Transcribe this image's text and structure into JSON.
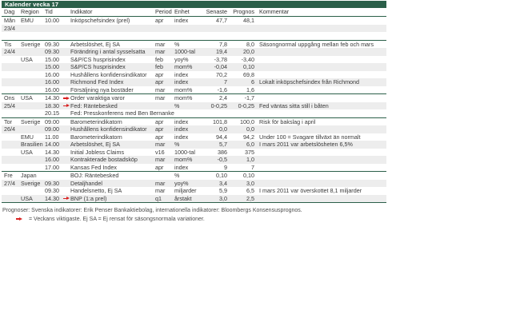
{
  "title": "Kalender vecka 17",
  "columns": {
    "dag": "Dag",
    "region": "Region",
    "tid": "Tid",
    "indikator": "Indikator",
    "period": "Period",
    "enhet": "Enhet",
    "senaste": "Senaste",
    "prognos": "Prognos",
    "kommentar": "Kommentar"
  },
  "day_blocks": [
    {
      "rows": [
        {
          "dag": "Mån",
          "region": "EMU",
          "tid": "10.00",
          "viktig": false,
          "indikator": "Inköpschefsindex (prel)",
          "period": "apr",
          "enhet": "index",
          "senaste": "47,7",
          "prognos": "48,1",
          "kommentar": ""
        },
        {
          "dag": "23/4",
          "region": "",
          "tid": "",
          "viktig": false,
          "indikator": "",
          "period": "",
          "enhet": "",
          "senaste": "",
          "prognos": "",
          "kommentar": ""
        },
        {
          "dag": "",
          "region": "",
          "tid": "",
          "viktig": false,
          "indikator": "",
          "period": "",
          "enhet": "",
          "senaste": "",
          "prognos": "",
          "kommentar": ""
        }
      ]
    },
    {
      "rows": [
        {
          "dag": "Tis",
          "region": "Sverige",
          "tid": "09.30",
          "viktig": false,
          "indikator": "Arbetslöshet, Ej SA",
          "period": "mar",
          "enhet": "%",
          "senaste": "7,8",
          "prognos": "8,0",
          "kommentar": "Säsongnormal uppgång mellan feb och mars"
        },
        {
          "dag": "24/4",
          "region": "",
          "tid": "09.30",
          "viktig": false,
          "indikator": "Förändring i antal sysselsatta",
          "period": "mar",
          "enhet": "1000-tal",
          "senaste": "19,4",
          "prognos": "20,0",
          "kommentar": ""
        },
        {
          "dag": "",
          "region": "USA",
          "tid": "15.00",
          "viktig": false,
          "indikator": "S&P/CS husprisindex",
          "period": "feb",
          "enhet": "yoy%",
          "senaste": "-3,78",
          "prognos": "-3,40",
          "kommentar": ""
        },
        {
          "dag": "",
          "region": "",
          "tid": "15.00",
          "viktig": false,
          "indikator": "S&P/CS husprisindex",
          "period": "feb",
          "enhet": "mom%",
          "senaste": "-0,04",
          "prognos": "0,10",
          "kommentar": ""
        },
        {
          "dag": "",
          "region": "",
          "tid": "16.00",
          "viktig": false,
          "indikator": "Hushållens konfidensindikator",
          "period": "apr",
          "enhet": "index",
          "senaste": "70,2",
          "prognos": "69,8",
          "kommentar": ""
        },
        {
          "dag": "",
          "region": "",
          "tid": "16.00",
          "viktig": false,
          "indikator": "Richmond Fed Index",
          "period": "apr",
          "enhet": "index",
          "senaste": "7",
          "prognos": "6",
          "kommentar": "Lokalt inköpschefsindex från Richmond"
        },
        {
          "dag": "",
          "region": "",
          "tid": "16.00",
          "viktig": false,
          "indikator": "Försäljning nya bostäder",
          "period": "mar",
          "enhet": "mom%",
          "senaste": "-1,6",
          "prognos": "1,6",
          "kommentar": ""
        }
      ]
    },
    {
      "rows": [
        {
          "dag": "Ons",
          "region": "USA",
          "tid": "14.30",
          "viktig": true,
          "indikator": "Order varaktiga varor",
          "period": "mar",
          "enhet": "mom%",
          "senaste": "2,4",
          "prognos": "-1,7",
          "kommentar": ""
        },
        {
          "dag": "25/4",
          "region": "",
          "tid": "18.30",
          "viktig": true,
          "indikator": "Fed: Räntebesked",
          "period": "",
          "enhet": "%",
          "senaste": "0-0,25",
          "prognos": "0-0,25",
          "kommentar": "Fed väntas sitta still i båten"
        },
        {
          "dag": "",
          "region": "",
          "tid": "20.15",
          "viktig": false,
          "indikator": "Fed: Presskonferens med Ben Bernanke",
          "period": "",
          "enhet": "",
          "senaste": "",
          "prognos": "",
          "kommentar": ""
        }
      ]
    },
    {
      "rows": [
        {
          "dag": "Tor",
          "region": "Sverige",
          "tid": "09.00",
          "viktig": false,
          "indikator": "Barometerindikatorn",
          "period": "apr",
          "enhet": "index",
          "senaste": "101,8",
          "prognos": "100,0",
          "kommentar": "Risk för bakslag i april"
        },
        {
          "dag": "26/4",
          "region": "",
          "tid": "09.00",
          "viktig": false,
          "indikator": "Hushållens konfidensindikator",
          "period": "apr",
          "enhet": "index",
          "senaste": "0,0",
          "prognos": "0,0",
          "kommentar": ""
        },
        {
          "dag": "",
          "region": "EMU",
          "tid": "11.00",
          "viktig": false,
          "indikator": "Barometerindikatorn",
          "period": "apr",
          "enhet": "index",
          "senaste": "94,4",
          "prognos": "94,2",
          "kommentar": "Under 100 = Svagare tillväxt än normalt"
        },
        {
          "dag": "",
          "region": "Brasilien",
          "tid": "14.00",
          "viktig": false,
          "indikator": "Arbetslöshet, Ej SA",
          "period": "mar",
          "enhet": "%",
          "senaste": "5,7",
          "prognos": "6,0",
          "kommentar": "I mars 2011 var arbetslösheten 6,5%"
        },
        {
          "dag": "",
          "region": "USA",
          "tid": "14.30",
          "viktig": false,
          "indikator": "Initial Jobless Claims",
          "period": "v16",
          "enhet": "1000-tal",
          "senaste": "386",
          "prognos": "375",
          "kommentar": ""
        },
        {
          "dag": "",
          "region": "",
          "tid": "16.00",
          "viktig": false,
          "indikator": "Kontrakterade bostadsköp",
          "period": "mar",
          "enhet": "mom%",
          "senaste": "-0,5",
          "prognos": "1,0",
          "kommentar": ""
        },
        {
          "dag": "",
          "region": "",
          "tid": "17.00",
          "viktig": false,
          "indikator": "Kansas Fed Index",
          "period": "apr",
          "enhet": "index",
          "senaste": "9",
          "prognos": "7",
          "kommentar": ""
        }
      ]
    },
    {
      "rows": [
        {
          "dag": "Fre",
          "region": "Japan",
          "tid": "",
          "viktig": false,
          "indikator": "BOJ: Räntebesked",
          "period": "",
          "enhet": "%",
          "senaste": "0,10",
          "prognos": "0,10",
          "kommentar": ""
        },
        {
          "dag": "27/4",
          "region": "Sverige",
          "tid": "09.30",
          "viktig": false,
          "indikator": "Detaljhandel",
          "period": "mar",
          "enhet": "yoy%",
          "senaste": "3,4",
          "prognos": "3,0",
          "kommentar": ""
        },
        {
          "dag": "",
          "region": "",
          "tid": "09.30",
          "viktig": false,
          "indikator": "Handelsnetto, Ej SA",
          "period": "mar",
          "enhet": "miljarder",
          "senaste": "5,9",
          "prognos": "6,5",
          "kommentar": "I mars 2011 var överskottet 8,1 miljarder"
        },
        {
          "dag": "",
          "region": "USA",
          "tid": "14.30",
          "viktig": true,
          "indikator": "BNP (1:a prel)",
          "period": "q1",
          "enhet": "årstakt",
          "senaste": "3,0",
          "prognos": "2,5",
          "kommentar": ""
        }
      ]
    }
  ],
  "footnotes": {
    "line1": "Prognoser: Svenska indikatorer: Erik Penser Bankaktiebolag, internationella indikatorer: Bloombergs Konsensusprognos.",
    "line2": "= Veckans viktigaste. Ej SA = Ej rensat för säsongsnormala variationer."
  },
  "colors": {
    "header_green": "#2B5F49",
    "row_alt": "#EDEDED",
    "marker_red": "#D92121"
  }
}
